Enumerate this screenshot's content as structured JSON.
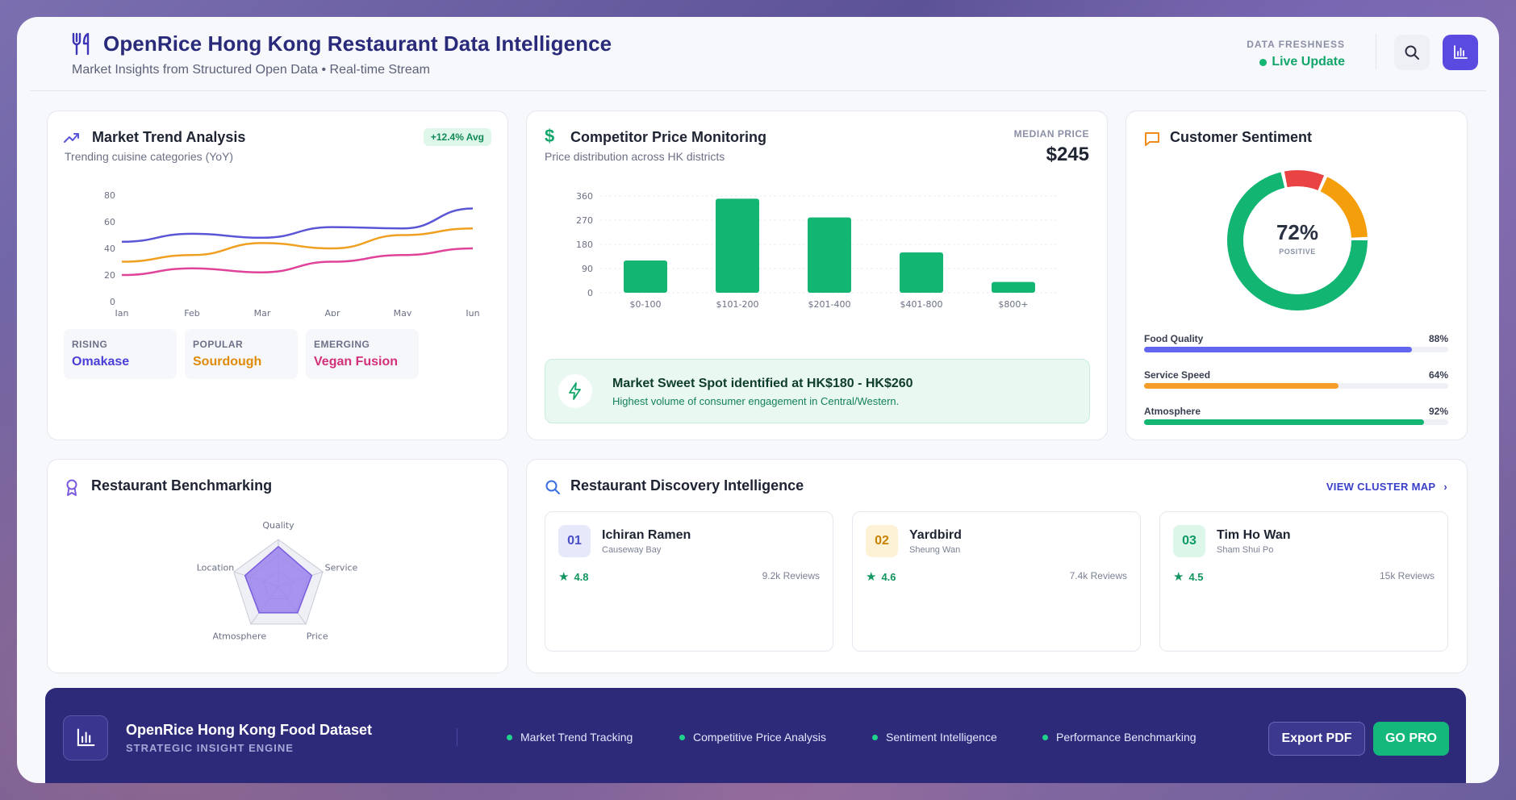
{
  "header": {
    "title": "OpenRice Hong Kong Restaurant Data Intelligence",
    "subtitle": "Market Insights from Structured Open Data • Real-time Stream",
    "freshness_label": "DATA FRESHNESS",
    "freshness_value": "Live Update",
    "icons": {
      "logo": "utensils-icon",
      "search": "search-icon",
      "chart": "bar-chart-icon"
    },
    "accent": "#5b4ae0"
  },
  "market_trend": {
    "title": "Market Trend Analysis",
    "subtitle": "Trending cuisine categories (YoY)",
    "badge": "+12.4% Avg",
    "categories": [
      {
        "label": "RISING",
        "value": "Omakase",
        "color": "#4a3fd6"
      },
      {
        "label": "POPULAR",
        "value": "Sourdough",
        "color": "#e08a0a"
      },
      {
        "label": "EMERGING",
        "value": "Vegan Fusion",
        "color": "#d2307a"
      }
    ]
  },
  "competitor": {
    "title": "Competitor Price Monitoring",
    "subtitle": "Price distribution across HK districts",
    "median_label": "MEDIAN PRICE",
    "median_value": "$245",
    "insight_title": "Market Sweet Spot identified at HK$180 - HK$260",
    "insight_sub": "Highest volume of consumer engagement in Central/Western."
  },
  "sentiment": {
    "title": "Customer Sentiment",
    "donut_value": "72%",
    "donut_label": "POSITIVE",
    "donut_segments": [
      {
        "value": 72,
        "color": "#12b572"
      },
      {
        "value": 10,
        "color": "#e94343"
      },
      {
        "value": 18,
        "color": "#f59e0b"
      }
    ],
    "bars": [
      {
        "label": "Food Quality",
        "pct": "88%",
        "value": 88,
        "color": "#6366f1"
      },
      {
        "label": "Service Speed",
        "pct": "64%",
        "value": 64,
        "color": "#f59e2a"
      },
      {
        "label": "Atmosphere",
        "pct": "92%",
        "value": 92,
        "color": "#12b572"
      }
    ]
  },
  "benchmark": {
    "title": "Restaurant Benchmarking",
    "axes": [
      "Quality",
      "Service",
      "Price",
      "Atmosphere",
      "Location"
    ],
    "values": [
      0.85,
      0.75,
      0.7,
      0.7,
      0.75
    ],
    "reference": [
      1,
      1,
      1,
      1,
      1
    ]
  },
  "discovery": {
    "title": "Restaurant Discovery Intelligence",
    "link": "VIEW CLUSTER MAP",
    "restaurants": [
      {
        "rank": "01",
        "name": "Ichiran Ramen",
        "area": "Causeway Bay",
        "rating": "4.8",
        "reviews": "9.2k Reviews",
        "bg": "#e7e9fb",
        "fg": "#4a4fc8"
      },
      {
        "rank": "02",
        "name": "Yardbird",
        "area": "Sheung Wan",
        "rating": "4.6",
        "reviews": "7.4k Reviews",
        "bg": "#fdf1d6",
        "fg": "#c98200"
      },
      {
        "rank": "03",
        "name": "Tim Ho Wan",
        "area": "Sham Shui Po",
        "rating": "4.5",
        "reviews": "15k Reviews",
        "bg": "#dcf6ea",
        "fg": "#0f9a63"
      }
    ]
  },
  "footer": {
    "title": "OpenRice Hong Kong Food Dataset",
    "subtitle": "STRATEGIC INSIGHT ENGINE",
    "features": [
      "Market Trend Tracking",
      "Competitive Price Analysis",
      "Sentiment Intelligence",
      "Performance Benchmarking"
    ],
    "export_label": "Export PDF",
    "pro_label": "GO PRO"
  },
  "chart_data": [
    {
      "type": "line",
      "x": [
        "Jan",
        "Feb",
        "Mar",
        "Apr",
        "May",
        "Jun"
      ],
      "ylim": [
        0,
        80
      ],
      "yticks": [
        0,
        20,
        40,
        60,
        80
      ],
      "series": [
        {
          "values": [
            45,
            51,
            48,
            56,
            55,
            70
          ],
          "color": "#5a56d6"
        },
        {
          "values": [
            30,
            35,
            44,
            40,
            50,
            55
          ],
          "color": "#f0a020"
        },
        {
          "values": [
            20,
            25,
            22,
            30,
            35,
            40
          ],
          "color": "#e0439a"
        }
      ]
    },
    {
      "type": "bar",
      "categories": [
        "$0-100",
        "$101-200",
        "$201-400",
        "$401-800",
        "$800+"
      ],
      "values": [
        120,
        350,
        280,
        150,
        40
      ],
      "ylim": [
        0,
        360
      ],
      "yticks": [
        0,
        90,
        180,
        270,
        360
      ],
      "color": "#12b572"
    }
  ]
}
